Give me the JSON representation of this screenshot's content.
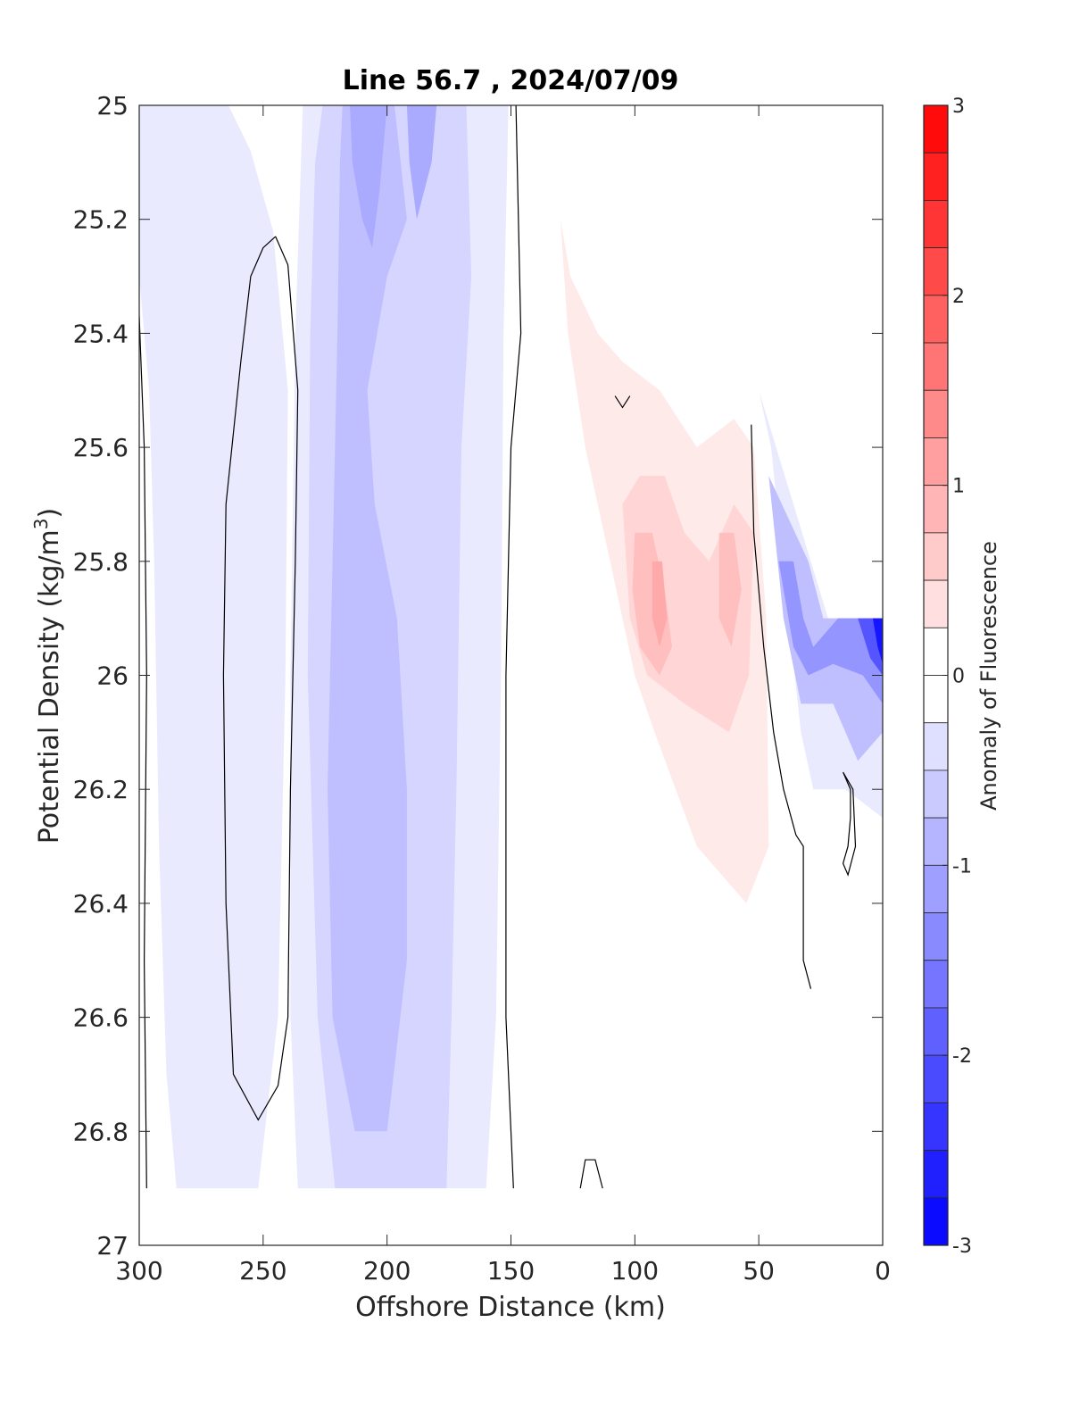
{
  "chart_data": {
    "type": "heatmap",
    "subtype": "filled-contour",
    "title": "Line 56.7 , 2024/07/09",
    "xlabel": "Offshore Distance (km)",
    "ylabel_main": "Potential Density (kg/m",
    "ylabel_sup": "3",
    "ylabel_close": ")",
    "colorbar_label": "Anomaly of Fluorescence",
    "xlim": [
      300,
      0
    ],
    "ylim": [
      25,
      27
    ],
    "y_reversed": true,
    "x_ticks": [
      "300",
      "250",
      "200",
      "150",
      "100",
      "50",
      "0"
    ],
    "y_ticks": [
      "25",
      "25.2",
      "25.4",
      "25.6",
      "25.8",
      "26",
      "26.2",
      "26.4",
      "26.6",
      "26.8",
      "27"
    ],
    "colorbar_range": [
      -3,
      3
    ],
    "colorbar_step": 0.25,
    "colorbar_ticks": [
      "3",
      "2",
      "1",
      "0",
      "-1",
      "-2",
      "-3"
    ],
    "colormap": {
      "negative": "#0000ff",
      "zero": "#ffffff",
      "positive": "#ff0000"
    },
    "contour_line_level": 0,
    "regions": [
      {
        "name": "offshore-weak-negative",
        "level": -0.25,
        "polygon": [
          [
            300,
            25
          ],
          [
            264,
            25
          ],
          [
            255,
            25.08
          ],
          [
            246,
            25.22
          ],
          [
            240,
            25.5
          ],
          [
            241,
            26.0
          ],
          [
            244,
            26.6
          ],
          [
            252,
            26.9
          ],
          [
            285,
            26.9
          ],
          [
            289,
            26.7
          ],
          [
            292,
            26.3
          ],
          [
            294,
            25.8
          ],
          [
            296,
            25.5
          ],
          [
            300,
            25.3
          ]
        ]
      },
      {
        "name": "central-weak-negative",
        "level": -0.25,
        "polygon": [
          [
            234,
            25
          ],
          [
            151,
            25
          ],
          [
            153,
            25.4
          ],
          [
            154,
            26.0
          ],
          [
            156,
            26.6
          ],
          [
            160,
            26.9
          ],
          [
            236,
            26.9
          ],
          [
            239,
            26.6
          ],
          [
            239,
            26.0
          ],
          [
            237,
            25.4
          ]
        ]
      },
      {
        "name": "central-moderate-negative",
        "level": -0.5,
        "polygon": [
          [
            226,
            25
          ],
          [
            168,
            25
          ],
          [
            166,
            25.3
          ],
          [
            170,
            25.6
          ],
          [
            172,
            26.2
          ],
          [
            174,
            26.6
          ],
          [
            176,
            26.9
          ],
          [
            221,
            26.9
          ],
          [
            228,
            26.6
          ],
          [
            232,
            26.0
          ],
          [
            231,
            25.4
          ],
          [
            229,
            25.1
          ]
        ]
      },
      {
        "name": "central-core-negative",
        "level": -0.75,
        "polygon": [
          [
            218,
            25
          ],
          [
            197,
            25
          ],
          [
            192,
            25.2
          ],
          [
            200,
            25.3
          ],
          [
            204,
            25.4
          ],
          [
            208,
            25.5
          ],
          [
            205,
            25.7
          ],
          [
            196,
            25.9
          ],
          [
            192,
            26.2
          ],
          [
            192,
            26.5
          ],
          [
            200,
            26.8
          ],
          [
            213,
            26.8
          ],
          [
            222,
            26.6
          ],
          [
            224,
            26.2
          ],
          [
            222,
            25.8
          ],
          [
            220,
            25.4
          ],
          [
            219,
            25.1
          ]
        ]
      },
      {
        "name": "central-max-negative",
        "level": -1.0,
        "polygon": [
          [
            215,
            25
          ],
          [
            200,
            25
          ],
          [
            203,
            25.15
          ],
          [
            206,
            25.25
          ],
          [
            210,
            25.2
          ],
          [
            214,
            25.1
          ]
        ]
      },
      {
        "name": "central-max-negative-2",
        "level": -1.0,
        "polygon": [
          [
            192,
            25
          ],
          [
            180,
            25
          ],
          [
            182,
            25.1
          ],
          [
            188,
            25.2
          ],
          [
            191,
            25.1
          ]
        ]
      },
      {
        "name": "nearshore-weak-positive",
        "level": 0.25,
        "polygon": [
          [
            130,
            25.2
          ],
          [
            127,
            25.4
          ],
          [
            120,
            25.6
          ],
          [
            110,
            25.8
          ],
          [
            100,
            26.0
          ],
          [
            92,
            26.1
          ],
          [
            75,
            26.3
          ],
          [
            55,
            26.4
          ],
          [
            46,
            26.3
          ],
          [
            47,
            25.9
          ],
          [
            52,
            25.6
          ],
          [
            60,
            25.55
          ],
          [
            75,
            25.6
          ],
          [
            90,
            25.5
          ],
          [
            105,
            25.45
          ],
          [
            115,
            25.4
          ],
          [
            126,
            25.3
          ]
        ]
      },
      {
        "name": "nearshore-moderate-positive",
        "level": 0.5,
        "polygon": [
          [
            105,
            25.7
          ],
          [
            98,
            25.65
          ],
          [
            88,
            25.65
          ],
          [
            80,
            25.75
          ],
          [
            70,
            25.8
          ],
          [
            60,
            25.7
          ],
          [
            52,
            25.75
          ],
          [
            54,
            26.0
          ],
          [
            62,
            26.1
          ],
          [
            80,
            26.05
          ],
          [
            95,
            26.0
          ],
          [
            102,
            25.9
          ]
        ]
      },
      {
        "name": "nearshore-core-positive",
        "level": 0.75,
        "polygon": [
          [
            100,
            25.75
          ],
          [
            93,
            25.75
          ],
          [
            88,
            25.85
          ],
          [
            85,
            25.95
          ],
          [
            90,
            26.0
          ],
          [
            98,
            25.95
          ],
          [
            101,
            25.85
          ]
        ]
      },
      {
        "name": "nearshore-core-positive-2",
        "level": 0.75,
        "polygon": [
          [
            66,
            25.75
          ],
          [
            60,
            25.75
          ],
          [
            57,
            25.85
          ],
          [
            61,
            25.95
          ],
          [
            66,
            25.9
          ]
        ]
      },
      {
        "name": "nearshore-max-positive",
        "level": 1.0,
        "polygon": [
          [
            93,
            25.8
          ],
          [
            89,
            25.8
          ],
          [
            87,
            25.9
          ],
          [
            90,
            25.95
          ],
          [
            93,
            25.9
          ]
        ]
      },
      {
        "name": "coastal-negative-1",
        "level": -0.25,
        "polygon": [
          [
            50,
            25.5
          ],
          [
            45,
            25.6
          ],
          [
            38,
            25.9
          ],
          [
            33,
            26.1
          ],
          [
            28,
            26.2
          ],
          [
            15,
            26.2
          ],
          [
            0,
            26.25
          ],
          [
            0,
            25.9
          ],
          [
            22,
            25.9
          ]
        ]
      },
      {
        "name": "coastal-negative-2",
        "level": -0.75,
        "polygon": [
          [
            46,
            25.65
          ],
          [
            40,
            25.9
          ],
          [
            33,
            26.05
          ],
          [
            20,
            26.05
          ],
          [
            10,
            26.15
          ],
          [
            0,
            26.1
          ],
          [
            0,
            25.9
          ],
          [
            24,
            25.9
          ],
          [
            30,
            25.8
          ]
        ]
      },
      {
        "name": "coastal-negative-3",
        "level": -1.25,
        "polygon": [
          [
            42,
            25.8
          ],
          [
            36,
            25.8
          ],
          [
            32,
            25.9
          ],
          [
            28,
            25.95
          ],
          [
            18,
            25.9
          ],
          [
            0,
            25.9
          ],
          [
            0,
            26.05
          ],
          [
            8,
            26.0
          ],
          [
            20,
            25.98
          ],
          [
            30,
            26.0
          ],
          [
            36,
            25.95
          ]
        ]
      },
      {
        "name": "coastal-negative-4",
        "level": -2.0,
        "polygon": [
          [
            10,
            25.9
          ],
          [
            0,
            25.9
          ],
          [
            0,
            26.0
          ],
          [
            5,
            25.97
          ]
        ]
      },
      {
        "name": "coastal-negative-5",
        "level": -2.75,
        "polygon": [
          [
            4,
            25.9
          ],
          [
            0,
            25.9
          ],
          [
            0,
            25.98
          ],
          [
            2,
            25.95
          ]
        ]
      }
    ],
    "zero_contours": [
      {
        "name": "offshore-outer",
        "line": [
          [
            300,
            25.37
          ],
          [
            298,
            25.6
          ],
          [
            297,
            26.0
          ],
          [
            298,
            26.5
          ],
          [
            297,
            26.9
          ]
        ]
      },
      {
        "name": "offshore-loop",
        "line": [
          [
            245,
            25.23
          ],
          [
            240,
            25.28
          ],
          [
            236,
            25.5
          ],
          [
            237,
            25.8
          ],
          [
            239,
            26.2
          ],
          [
            240,
            26.6
          ],
          [
            244,
            26.72
          ],
          [
            252,
            26.78
          ],
          [
            262,
            26.7
          ],
          [
            265,
            26.4
          ],
          [
            266,
            26.0
          ],
          [
            265,
            25.7
          ],
          [
            259,
            25.45
          ],
          [
            255,
            25.3
          ],
          [
            250,
            25.25
          ],
          [
            245,
            25.23
          ]
        ]
      },
      {
        "name": "central-edge",
        "line": [
          [
            148,
            25
          ],
          [
            146,
            25.4
          ],
          [
            150,
            25.6
          ],
          [
            152,
            26.0
          ],
          [
            152,
            26.6
          ],
          [
            149,
            26.9
          ]
        ]
      },
      {
        "name": "small-arc-top",
        "line": [
          [
            108,
            25.51
          ],
          [
            105,
            25.53
          ],
          [
            102,
            25.51
          ]
        ]
      },
      {
        "name": "small-arc-bottom",
        "line": [
          [
            122,
            26.9
          ],
          [
            120,
            26.85
          ],
          [
            116,
            26.85
          ],
          [
            113,
            26.9
          ]
        ]
      },
      {
        "name": "coastal-edge",
        "line": [
          [
            53,
            25.56
          ],
          [
            52,
            25.75
          ],
          [
            48,
            25.95
          ],
          [
            44,
            26.1
          ],
          [
            40,
            26.2
          ],
          [
            35,
            26.28
          ],
          [
            32,
            26.3
          ],
          [
            32,
            26.45
          ],
          [
            32,
            26.5
          ],
          [
            29,
            26.55
          ]
        ]
      },
      {
        "name": "coastal-loop",
        "line": [
          [
            16,
            26.17
          ],
          [
            12,
            26.2
          ],
          [
            11,
            26.3
          ],
          [
            14,
            26.35
          ],
          [
            16,
            26.33
          ],
          [
            14,
            26.3
          ],
          [
            13,
            26.25
          ],
          [
            13,
            26.2
          ],
          [
            16,
            26.17
          ]
        ]
      }
    ]
  }
}
